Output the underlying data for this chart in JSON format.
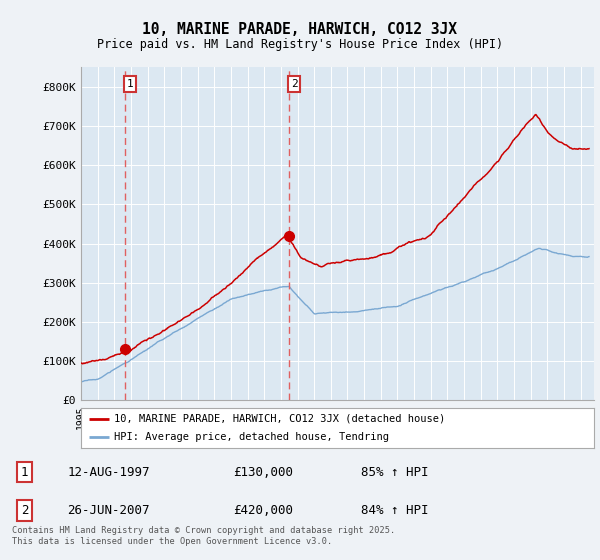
{
  "title": "10, MARINE PARADE, HARWICH, CO12 3JX",
  "subtitle": "Price paid vs. HM Land Registry's House Price Index (HPI)",
  "background_color": "#f0f4f8",
  "plot_bg_color": "#dde8f0",
  "ylim": [
    0,
    850000
  ],
  "yticks": [
    0,
    100000,
    200000,
    300000,
    400000,
    500000,
    600000,
    700000,
    800000
  ],
  "ytick_labels": [
    "£0",
    "£100K",
    "£200K",
    "£300K",
    "£400K",
    "£500K",
    "£600K",
    "£700K",
    "£800K"
  ],
  "legend_line1": "10, MARINE PARADE, HARWICH, CO12 3JX (detached house)",
  "legend_line2": "HPI: Average price, detached house, Tendring",
  "sale1_label": "1",
  "sale1_date": "12-AUG-1997",
  "sale1_price": "£130,000",
  "sale1_hpi": "85% ↑ HPI",
  "sale2_label": "2",
  "sale2_date": "26-JUN-2007",
  "sale2_price": "£420,000",
  "sale2_hpi": "84% ↑ HPI",
  "footer": "Contains HM Land Registry data © Crown copyright and database right 2025.\nThis data is licensed under the Open Government Licence v3.0.",
  "red_color": "#cc0000",
  "blue_color": "#7aa8d2",
  "vline_color": "#e06060",
  "grid_color": "#ffffff",
  "sale1_year": 1997.62,
  "sale1_value": 130000,
  "sale2_year": 2007.49,
  "sale2_value": 420000
}
